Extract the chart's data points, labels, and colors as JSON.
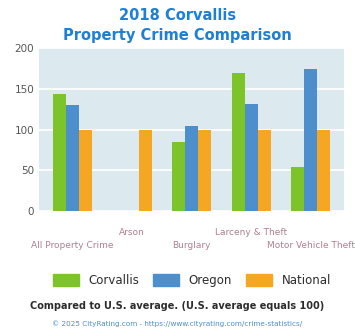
{
  "title_line1": "2018 Corvallis",
  "title_line2": "Property Crime Comparison",
  "title_color": "#1e7fd4",
  "categories": [
    "All Property Crime",
    "Arson",
    "Burglary",
    "Larceny & Theft",
    "Motor Vehicle Theft"
  ],
  "series": {
    "Corvallis": [
      143,
      0,
      85,
      169,
      54
    ],
    "Oregon": [
      130,
      0,
      104,
      131,
      174
    ],
    "National": [
      100,
      100,
      100,
      100,
      100
    ]
  },
  "colors": {
    "Corvallis": "#7dc42a",
    "Oregon": "#4d8fcc",
    "National": "#f5a623"
  },
  "ylim": [
    0,
    200
  ],
  "yticks": [
    0,
    50,
    100,
    150,
    200
  ],
  "background_color": "#dce9ef",
  "grid_color": "#ffffff",
  "legend_note": "Compared to U.S. average. (U.S. average equals 100)",
  "legend_note_color": "#2c2c2c",
  "footer": "© 2025 CityRating.com - https://www.cityrating.com/crime-statistics/",
  "footer_color": "#4d8fcc",
  "cat_label_color": "#b08090",
  "bar_width": 0.22
}
